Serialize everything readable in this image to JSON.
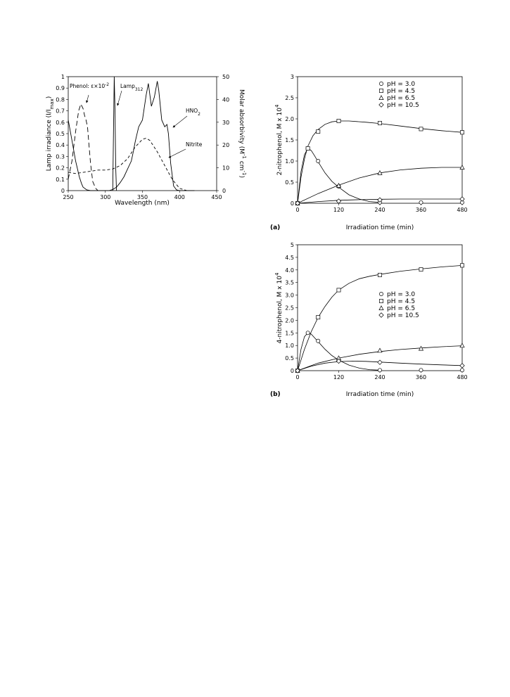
{
  "chart_data": [
    {
      "type": "line",
      "xlabel": "Wavelength (nm)",
      "ylabel_left": "Lamp irradiance (I/I",
      "ylabel_left_sub": "max",
      "ylabel_left_end": ")",
      "ylabel_right": "Molar absorbivity (M",
      "ylabel_right_sup1": "-1",
      "ylabel_right_mid": " cm",
      "ylabel_right_sup2": "-1",
      "ylabel_right_end": ")",
      "xlim": [
        250,
        450
      ],
      "ylim_left": [
        0,
        1
      ],
      "ylim_right": [
        0,
        50
      ],
      "x_ticks": [
        "250",
        "300",
        "350",
        "400",
        "450"
      ],
      "y_ticks_left": [
        "0",
        "0.1",
        "0.2",
        "0.3",
        "0.4",
        "0.5",
        "0.6",
        "0.7",
        "0.8",
        "0.9",
        "1"
      ],
      "y_ticks_right": [
        "0",
        "10",
        "20",
        "30",
        "40",
        "50"
      ],
      "annotations": {
        "phenol": "Phenol: ε×10",
        "phenol_sup": "-2",
        "lamp": "Lamp",
        "lamp_sub": "312",
        "hno2": "HNO",
        "hno2_sub": "2",
        "nitrite": "Nitrite"
      },
      "series": [
        {
          "name": "Lamp312",
          "axis": "left",
          "style": "solid",
          "x": [
            310,
            311,
            312,
            313,
            314,
            315
          ],
          "y": [
            0,
            0.55,
            1.0,
            0.7,
            0.2,
            0
          ]
        },
        {
          "name": "HNO2",
          "axis": "right",
          "style": "solid",
          "x": [
            250,
            255,
            260,
            265,
            268,
            270,
            275,
            280,
            285,
            290,
            295,
            300,
            305,
            310,
            315,
            320,
            325,
            330,
            335,
            338,
            340,
            342,
            345,
            350,
            355,
            358,
            362,
            366,
            370,
            372,
            376,
            380,
            383,
            385,
            388,
            392,
            396,
            400,
            410,
            420
          ],
          "y": [
            31,
            22,
            13,
            6,
            3,
            1.5,
            0.3,
            0,
            0,
            0,
            0,
            0,
            0,
            0.5,
            1.5,
            3.5,
            6,
            9.5,
            13,
            17.5,
            21,
            24,
            28,
            31,
            42,
            47,
            37,
            41,
            48,
            44,
            31,
            28,
            29,
            25,
            12,
            2,
            0.3,
            0,
            0,
            0
          ]
        },
        {
          "name": "Nitrite",
          "axis": "right",
          "style": "dash",
          "x": [
            250,
            260,
            270,
            280,
            290,
            300,
            310,
            320,
            330,
            340,
            350,
            355,
            360,
            370,
            380,
            390,
            400,
            410,
            420
          ],
          "y": [
            8,
            7.5,
            8,
            8.5,
            9,
            9,
            9.5,
            11,
            14,
            19,
            22.5,
            23,
            22,
            17,
            11,
            5,
            1,
            0,
            0
          ]
        },
        {
          "name": "Phenol",
          "axis": "right",
          "style": "longdash",
          "x": [
            250,
            255,
            260,
            264,
            267,
            270,
            272,
            274,
            276,
            278,
            280,
            283,
            287,
            290,
            295,
            300
          ],
          "y": [
            5,
            13,
            26,
            35,
            38,
            36,
            33,
            31,
            28,
            20,
            12,
            4,
            1,
            0,
            0,
            0
          ]
        }
      ]
    },
    {
      "type": "line",
      "panel_label": "(a)",
      "xlabel": "Irradiation time (min)",
      "ylabel": "2-nitrophenol, M x 10",
      "ylabel_sup": "4",
      "xlim": [
        0,
        480
      ],
      "ylim": [
        0,
        3
      ],
      "x_ticks": [
        0,
        120,
        240,
        360,
        480
      ],
      "y_ticks": [
        "0",
        "0.5",
        "1.0",
        "1.5",
        "2.0",
        "2.5",
        "3"
      ],
      "legend_position": "top-right",
      "series": [
        {
          "name": "pH =  3.0",
          "marker": "circle",
          "x": [
            0,
            30,
            60,
            120,
            240,
            360,
            480
          ],
          "y": [
            0,
            1.3,
            1.0,
            0.4,
            0.02,
            0.02,
            0.02
          ],
          "curve_x": [
            0,
            10,
            20,
            30,
            40,
            50,
            60,
            80,
            100,
            120,
            150,
            180,
            210,
            240
          ],
          "curve_y": [
            0,
            0.75,
            1.15,
            1.3,
            1.25,
            1.12,
            0.98,
            0.72,
            0.52,
            0.38,
            0.2,
            0.1,
            0.04,
            0.02
          ]
        },
        {
          "name": "pH =  4.5",
          "marker": "square",
          "x": [
            0,
            30,
            60,
            120,
            240,
            360,
            480
          ],
          "y": [
            0,
            1.3,
            1.7,
            1.95,
            1.9,
            1.76,
            1.68
          ],
          "curve_x": [
            0,
            10,
            20,
            30,
            45,
            60,
            80,
            100,
            120,
            150,
            200,
            240,
            300,
            360,
            420,
            480
          ],
          "curve_y": [
            0,
            0.62,
            1.05,
            1.35,
            1.6,
            1.75,
            1.87,
            1.93,
            1.95,
            1.95,
            1.92,
            1.89,
            1.83,
            1.77,
            1.72,
            1.68
          ]
        },
        {
          "name": "pH =  6.5",
          "marker": "triangle",
          "x": [
            0,
            120,
            240,
            480
          ],
          "y": [
            0,
            0.42,
            0.72,
            0.85
          ],
          "curve_x": [
            0,
            60,
            120,
            180,
            240,
            300,
            360,
            420,
            480
          ],
          "curve_y": [
            0,
            0.23,
            0.43,
            0.6,
            0.72,
            0.79,
            0.83,
            0.85,
            0.85
          ]
        },
        {
          "name": "pH = 10.5",
          "marker": "diamond",
          "x": [
            0,
            120,
            240,
            480
          ],
          "y": [
            0,
            0.05,
            0.08,
            0.1
          ],
          "curve_x": [
            0,
            60,
            120,
            180,
            240,
            300,
            360,
            420,
            480
          ],
          "curve_y": [
            0,
            0.04,
            0.07,
            0.085,
            0.095,
            0.1,
            0.1,
            0.1,
            0.1
          ]
        }
      ]
    },
    {
      "type": "line",
      "panel_label": "(b)",
      "xlabel": "Irradiation time (min)",
      "ylabel": "4-nitrophenol, M x 10",
      "ylabel_sup": "4",
      "xlim": [
        0,
        480
      ],
      "ylim": [
        0,
        5
      ],
      "x_ticks": [
        0,
        120,
        240,
        360,
        480
      ],
      "y_ticks": [
        "0",
        "0.5",
        "1.0",
        "1.5",
        "2.0",
        "2.5",
        "3.0",
        "3.5",
        "4.0",
        "4.5",
        "5"
      ],
      "legend_position": "center-right",
      "series": [
        {
          "name": "pH =  3.0",
          "marker": "circle",
          "x": [
            0,
            30,
            60,
            120,
            240,
            360,
            480
          ],
          "y": [
            0,
            1.5,
            1.18,
            0.42,
            0.02,
            0.02,
            0.02
          ],
          "curve_x": [
            0,
            10,
            20,
            30,
            40,
            50,
            60,
            80,
            100,
            120,
            150,
            180,
            210,
            240
          ],
          "curve_y": [
            0,
            0.85,
            1.35,
            1.5,
            1.45,
            1.3,
            1.15,
            0.85,
            0.6,
            0.42,
            0.22,
            0.1,
            0.04,
            0.02
          ]
        },
        {
          "name": "pH =  4.5",
          "marker": "square",
          "x": [
            0,
            60,
            120,
            240,
            360,
            480
          ],
          "y": [
            0,
            2.12,
            3.2,
            3.8,
            4.02,
            4.18
          ],
          "curve_x": [
            0,
            20,
            40,
            60,
            80,
            100,
            120,
            150,
            180,
            210,
            240,
            300,
            360,
            420,
            480
          ],
          "curve_y": [
            0,
            0.85,
            1.55,
            2.12,
            2.55,
            2.92,
            3.2,
            3.47,
            3.65,
            3.75,
            3.82,
            3.95,
            4.04,
            4.12,
            4.18
          ]
        },
        {
          "name": "pH =  6.5",
          "marker": "triangle",
          "x": [
            0,
            120,
            240,
            360,
            480
          ],
          "y": [
            0,
            0.5,
            0.8,
            0.88,
            1.0
          ],
          "curve_x": [
            0,
            60,
            120,
            180,
            240,
            300,
            360,
            420,
            480
          ],
          "curve_y": [
            0,
            0.3,
            0.5,
            0.65,
            0.76,
            0.84,
            0.9,
            0.95,
            0.99
          ]
        },
        {
          "name": "pH = 10.5",
          "marker": "diamond",
          "x": [
            0,
            120,
            240,
            480
          ],
          "y": [
            0,
            0.38,
            0.33,
            0.2
          ],
          "curve_x": [
            0,
            40,
            80,
            120,
            160,
            200,
            240,
            300,
            360,
            420,
            480
          ],
          "curve_y": [
            0,
            0.18,
            0.3,
            0.36,
            0.38,
            0.37,
            0.34,
            0.3,
            0.26,
            0.23,
            0.2
          ]
        }
      ]
    }
  ]
}
